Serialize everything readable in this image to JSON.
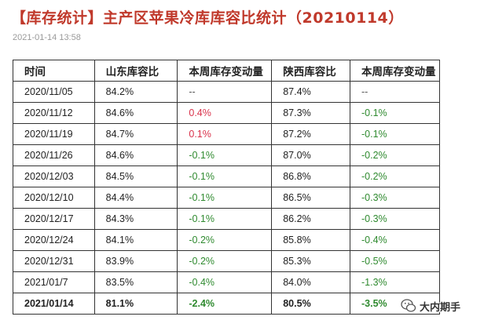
{
  "header": {
    "title": "【库存统计】主产区苹果冷库库容比统计（20210114）",
    "timestamp": "2021-01-14 13:58"
  },
  "table": {
    "columns": [
      "时间",
      "山东库容比",
      "本周库存变动量",
      "陕西库容比",
      "本周库存变动量"
    ],
    "rows": [
      {
        "date": "2020/11/05",
        "sd_ratio": "84.2%",
        "sd_change": "--",
        "sx_ratio": "87.4%",
        "sx_change": "--"
      },
      {
        "date": "2020/11/12",
        "sd_ratio": "84.6%",
        "sd_change": "0.4%",
        "sx_ratio": "87.3%",
        "sx_change": "-0.1%"
      },
      {
        "date": "2020/11/19",
        "sd_ratio": "84.7%",
        "sd_change": "0.1%",
        "sx_ratio": "87.2%",
        "sx_change": "-0.1%"
      },
      {
        "date": "2020/11/26",
        "sd_ratio": "84.6%",
        "sd_change": "-0.1%",
        "sx_ratio": "87.0%",
        "sx_change": "-0.2%"
      },
      {
        "date": "2020/12/03",
        "sd_ratio": "84.5%",
        "sd_change": "-0.1%",
        "sx_ratio": "86.8%",
        "sx_change": "-0.2%"
      },
      {
        "date": "2020/12/10",
        "sd_ratio": "84.4%",
        "sd_change": "-0.1%",
        "sx_ratio": "86.5%",
        "sx_change": "-0.3%"
      },
      {
        "date": "2020/12/17",
        "sd_ratio": "84.3%",
        "sd_change": "-0.1%",
        "sx_ratio": "86.2%",
        "sx_change": "-0.3%"
      },
      {
        "date": "2020/12/24",
        "sd_ratio": "84.1%",
        "sd_change": "-0.2%",
        "sx_ratio": "85.8%",
        "sx_change": "-0.4%"
      },
      {
        "date": "2020/12/31",
        "sd_ratio": "83.9%",
        "sd_change": "-0.2%",
        "sx_ratio": "85.3%",
        "sx_change": "-0.5%"
      },
      {
        "date": "2021/01/7",
        "sd_ratio": "83.5%",
        "sd_change": "-0.4%",
        "sx_ratio": "84.0%",
        "sx_change": "-1.3%"
      },
      {
        "date": "2021/01/14",
        "sd_ratio": "81.1%",
        "sd_change": "-2.4%",
        "sx_ratio": "80.5%",
        "sx_change": "-3.5%"
      }
    ]
  },
  "colors": {
    "title": "#c0392b",
    "increase": "#d9324b",
    "decrease": "#2f8a2f",
    "timestamp": "#9a9a9a"
  },
  "watermark": {
    "icon": "wechat-logo-icon",
    "text": "大内期手"
  }
}
